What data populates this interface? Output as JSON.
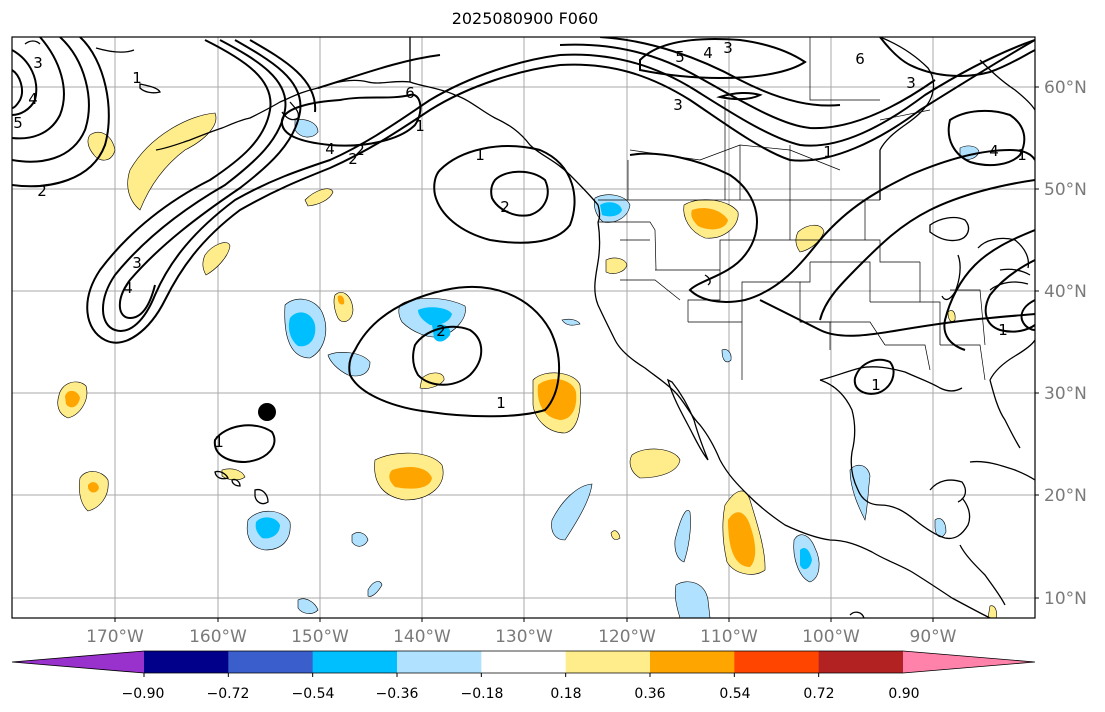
{
  "title": "2025080900 F060",
  "lon_labels": [
    "170°W",
    "160°W",
    "150°W",
    "140°W",
    "130°W",
    "120°W",
    "110°W",
    "100°W",
    "90°W"
  ],
  "lat_labels": [
    "60°N",
    "50°N",
    "40°N",
    "30°N",
    "20°N",
    "10°N"
  ],
  "colorbar": {
    "colors": [
      "#9932cc",
      "#00008b",
      "#3a5fcd",
      "#00bfff",
      "#b0e2ff",
      "#ffffff",
      "#ffec8b",
      "#ffa500",
      "#ff4500",
      "#b22222",
      "#ff82ab"
    ],
    "tick_labels": [
      "−0.90",
      "−0.72",
      "−0.54",
      "−0.36",
      "−0.18",
      "0.18",
      "0.36",
      "0.54",
      "0.72",
      "0.90"
    ]
  },
  "contour_labels": [
    "3",
    "4",
    "5",
    "2",
    "1",
    "4",
    "2",
    "1",
    "6",
    "1",
    "2",
    "3",
    "4",
    "2",
    "1",
    "2",
    "1",
    "1",
    "5",
    "4",
    "3",
    "3",
    "6",
    "3",
    "4",
    "1",
    "1",
    "1"
  ],
  "marker": "black-dot"
}
